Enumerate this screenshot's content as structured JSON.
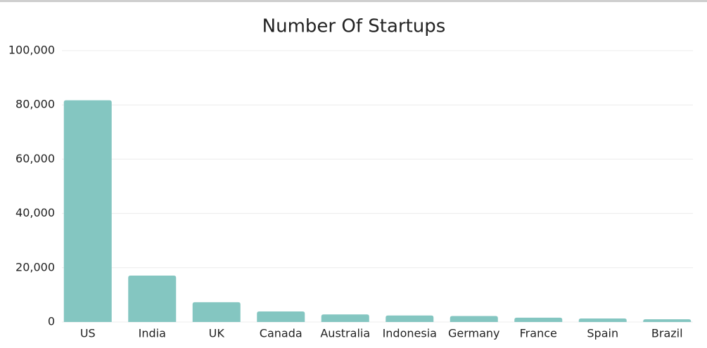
{
  "chart_data": {
    "type": "bar",
    "title": "Number Of Startups",
    "categories": [
      "US",
      "India",
      "UK",
      "Canada",
      "Australia",
      "Indonesia",
      "Germany",
      "France",
      "Spain",
      "Brazil"
    ],
    "values": [
      81700,
      17100,
      7300,
      3900,
      2800,
      2400,
      2200,
      1600,
      1300,
      1000
    ],
    "color": "#84c6c1",
    "ylim": [
      0,
      100000
    ],
    "yticks": [
      0,
      {
        "value": 20000,
        "label": "20,000"
      },
      {
        "value": 40000,
        "label": "40,000"
      },
      {
        "value": 60000,
        "label": "60,000"
      },
      {
        "value": 80000,
        "label": "80,000"
      },
      {
        "value": 100000,
        "label": "100,000"
      }
    ],
    "grid": true
  }
}
